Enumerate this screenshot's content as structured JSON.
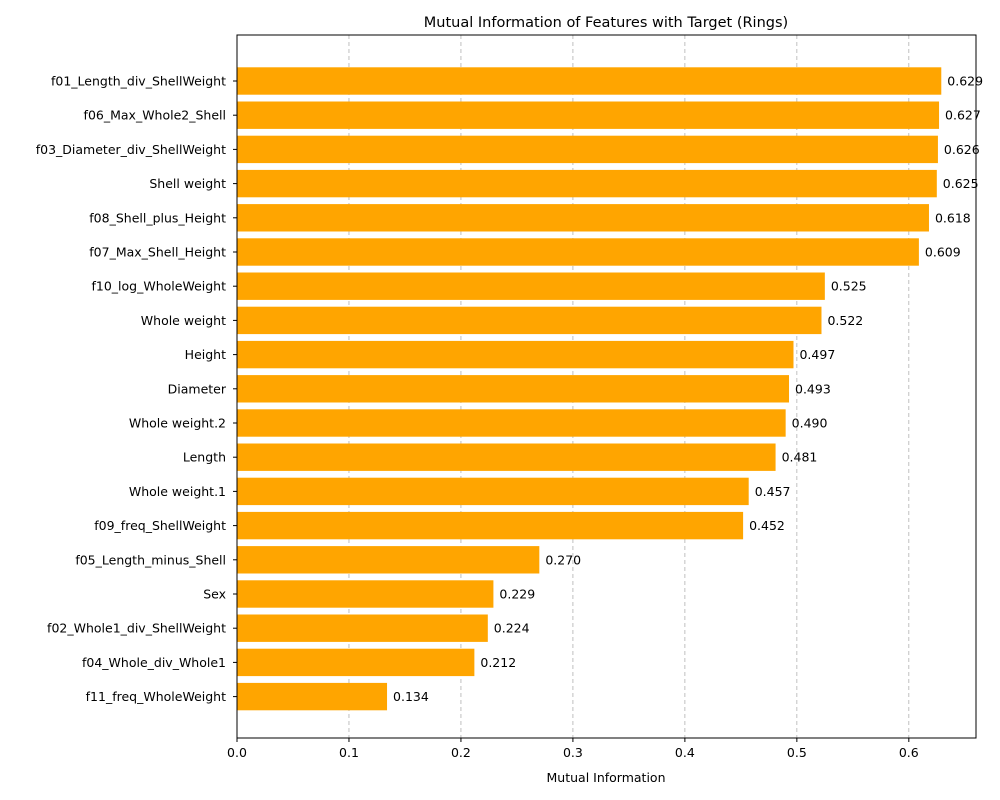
{
  "chart_data": {
    "type": "bar",
    "orientation": "horizontal",
    "title": "Mutual Information of Features with Target (Rings)",
    "xlabel": "Mutual Information",
    "ylabel": "",
    "xlim": [
      0,
      0.66
    ],
    "xticks": [
      "0.0",
      "0.1",
      "0.2",
      "0.3",
      "0.4",
      "0.5",
      "0.6"
    ],
    "grid": "x-dashed",
    "bar_color": "#FFA500",
    "categories": [
      "f01_Length_div_ShellWeight",
      "f06_Max_Whole2_Shell",
      "f03_Diameter_div_ShellWeight",
      "Shell weight",
      "f08_Shell_plus_Height",
      "f07_Max_Shell_Height",
      "f10_log_WholeWeight",
      "Whole weight",
      "Height",
      "Diameter",
      "Whole weight.2",
      "Length",
      "Whole weight.1",
      "f09_freq_ShellWeight",
      "f05_Length_minus_Shell",
      "Sex",
      "f02_Whole1_div_ShellWeight",
      "f04_Whole_div_Whole1",
      "f11_freq_WholeWeight"
    ],
    "values": [
      0.629,
      0.627,
      0.626,
      0.625,
      0.618,
      0.609,
      0.525,
      0.522,
      0.497,
      0.493,
      0.49,
      0.481,
      0.457,
      0.452,
      0.27,
      0.229,
      0.224,
      0.212,
      0.134
    ],
    "value_labels": [
      "0.629",
      "0.627",
      "0.626",
      "0.625",
      "0.618",
      "0.609",
      "0.525",
      "0.522",
      "0.497",
      "0.493",
      "0.490",
      "0.481",
      "0.457",
      "0.452",
      "0.270",
      "0.229",
      "0.224",
      "0.212",
      "0.134"
    ]
  }
}
